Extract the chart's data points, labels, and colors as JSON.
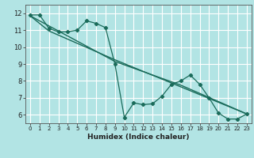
{
  "xlabel": "Humidex (Indice chaleur)",
  "bg_color": "#b2e4e4",
  "grid_color": "#ffffff",
  "line_color": "#1a6b5a",
  "xlim": [
    -0.5,
    23.5
  ],
  "ylim": [
    5.5,
    12.5
  ],
  "xticks": [
    0,
    1,
    2,
    3,
    4,
    5,
    6,
    7,
    8,
    9,
    10,
    11,
    12,
    13,
    14,
    15,
    16,
    17,
    18,
    19,
    20,
    21,
    22,
    23
  ],
  "yticks": [
    6,
    7,
    8,
    9,
    10,
    11,
    12
  ],
  "line1_x": [
    0,
    1,
    2,
    3,
    4,
    5,
    6,
    7,
    8,
    9,
    10,
    11,
    12,
    13,
    14,
    15,
    16,
    17,
    18,
    19,
    20,
    21,
    22,
    23
  ],
  "line1_y": [
    11.9,
    11.9,
    11.1,
    10.9,
    10.9,
    11.0,
    11.55,
    11.4,
    11.15,
    9.0,
    5.85,
    6.7,
    6.6,
    6.65,
    7.1,
    7.8,
    8.0,
    8.35,
    7.8,
    7.0,
    6.1,
    5.75,
    5.75,
    6.05
  ],
  "trend1_x": [
    0,
    23
  ],
  "trend1_y": [
    11.9,
    6.05
  ],
  "trend2_x": [
    0,
    2,
    9,
    23
  ],
  "trend2_y": [
    11.85,
    10.95,
    9.25,
    6.05
  ],
  "trend3_x": [
    0,
    9,
    16,
    23
  ],
  "trend3_y": [
    11.85,
    9.15,
    7.75,
    6.05
  ]
}
